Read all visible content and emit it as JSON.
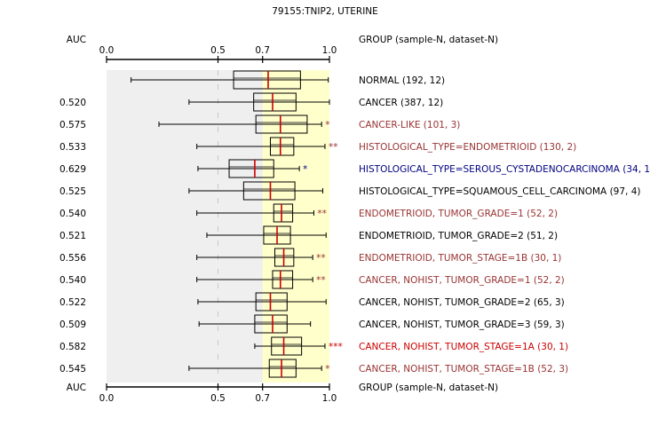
{
  "chart_data": {
    "type": "boxplot",
    "title": "79155:TNIP2, UTERINE",
    "left_header": "AUC",
    "right_header": "GROUP (sample-N, dataset-N)",
    "xlim": [
      0,
      1
    ],
    "ticks": [
      {
        "value": 0.0,
        "label": "0.0"
      },
      {
        "value": 0.5,
        "label": "0.5"
      },
      {
        "value": 0.7,
        "label": "0.7"
      },
      {
        "value": 1.0,
        "label": "1.0"
      }
    ],
    "colors": {
      "background_band": "#efefef",
      "highlight_band": "#ffffcc",
      "median": "#cc0000",
      "black": "#000000",
      "brown": "#993333",
      "navy": "#000080",
      "red": "#cc0000"
    },
    "rows": [
      {
        "auc": "",
        "label": "NORMAL (192, 12)",
        "color": "black",
        "stars": "",
        "whisker_low": 0.11,
        "q1": 0.57,
        "median": 0.725,
        "q3": 0.87,
        "whisker_high": 0.995
      },
      {
        "auc": "0.520",
        "label": "CANCER (387, 12)",
        "color": "black",
        "stars": "",
        "whisker_low": 0.37,
        "q1": 0.66,
        "median": 0.745,
        "q3": 0.85,
        "whisker_high": 1.0
      },
      {
        "auc": "0.575",
        "label": "CANCER-LIKE (101, 3)",
        "color": "brown",
        "stars": "*",
        "whisker_low": 0.235,
        "q1": 0.67,
        "median": 0.78,
        "q3": 0.9,
        "whisker_high": 0.965
      },
      {
        "auc": "0.533",
        "label": "HISTOLOGICAL_TYPE=ENDOMETRIOID (130, 2)",
        "color": "brown",
        "stars": "**",
        "whisker_low": 0.405,
        "q1": 0.735,
        "median": 0.78,
        "q3": 0.84,
        "whisker_high": 0.98
      },
      {
        "auc": "0.629",
        "label": "HISTOLOGICAL_TYPE=SEROUS_CYSTADENOCARCINOMA (34, 1)",
        "color": "navy",
        "stars": "*",
        "whisker_low": 0.41,
        "q1": 0.55,
        "median": 0.665,
        "q3": 0.75,
        "whisker_high": 0.865
      },
      {
        "auc": "0.525",
        "label": "HISTOLOGICAL_TYPE=SQUAMOUS_CELL_CARCINOMA (97, 4)",
        "color": "black",
        "stars": "",
        "whisker_low": 0.37,
        "q1": 0.615,
        "median": 0.735,
        "q3": 0.845,
        "whisker_high": 0.97
      },
      {
        "auc": "0.540",
        "label": "ENDOMETRIOID, TUMOR_GRADE=1 (52, 2)",
        "color": "brown",
        "stars": "**",
        "whisker_low": 0.405,
        "q1": 0.75,
        "median": 0.785,
        "q3": 0.835,
        "whisker_high": 0.93
      },
      {
        "auc": "0.521",
        "label": "ENDOMETRIOID, TUMOR_GRADE=2 (51, 2)",
        "color": "black",
        "stars": "",
        "whisker_low": 0.45,
        "q1": 0.705,
        "median": 0.765,
        "q3": 0.825,
        "whisker_high": 0.985
      },
      {
        "auc": "0.556",
        "label": "ENDOMETRIOID, TUMOR_STAGE=1B (30, 1)",
        "color": "brown",
        "stars": "**",
        "whisker_low": 0.405,
        "q1": 0.755,
        "median": 0.795,
        "q3": 0.84,
        "whisker_high": 0.925
      },
      {
        "auc": "0.540",
        "label": "CANCER, NOHIST, TUMOR_GRADE=1 (52, 2)",
        "color": "brown",
        "stars": "**",
        "whisker_low": 0.405,
        "q1": 0.745,
        "median": 0.78,
        "q3": 0.835,
        "whisker_high": 0.925
      },
      {
        "auc": "0.522",
        "label": "CANCER, NOHIST, TUMOR_GRADE=2 (65, 3)",
        "color": "black",
        "stars": "",
        "whisker_low": 0.41,
        "q1": 0.67,
        "median": 0.735,
        "q3": 0.81,
        "whisker_high": 0.985
      },
      {
        "auc": "0.509",
        "label": "CANCER, NOHIST, TUMOR_GRADE=3 (59, 3)",
        "color": "black",
        "stars": "",
        "whisker_low": 0.415,
        "q1": 0.665,
        "median": 0.745,
        "q3": 0.81,
        "whisker_high": 0.915
      },
      {
        "auc": "0.582",
        "label": "CANCER, NOHIST, TUMOR_STAGE=1A (30, 1)",
        "color": "red",
        "stars": "***",
        "whisker_low": 0.665,
        "q1": 0.74,
        "median": 0.795,
        "q3": 0.875,
        "whisker_high": 0.98
      },
      {
        "auc": "0.545",
        "label": "CANCER, NOHIST, TUMOR_STAGE=1B (52, 3)",
        "color": "brown",
        "stars": "*",
        "whisker_low": 0.37,
        "q1": 0.73,
        "median": 0.785,
        "q3": 0.85,
        "whisker_high": 0.965
      }
    ]
  }
}
